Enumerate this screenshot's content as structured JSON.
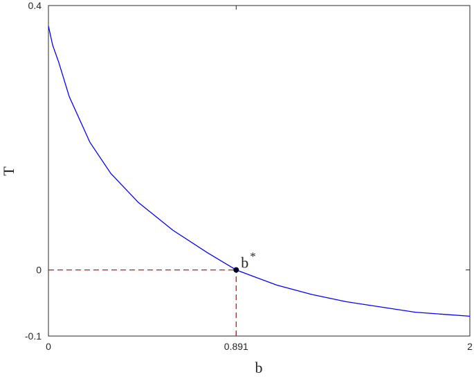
{
  "chart_data": {
    "type": "line",
    "xlabel": "b",
    "ylabel": "T",
    "x": [
      0,
      0.02,
      0.049,
      0.099,
      0.197,
      0.296,
      0.427,
      0.591,
      0.755,
      0.891,
      1.084,
      1.248,
      1.412,
      1.576,
      1.741,
      2
    ],
    "series": [
      {
        "color": "#0000ff",
        "values": [
          0.369,
          0.34,
          0.314,
          0.262,
          0.193,
          0.146,
          0.102,
          0.06,
          0.026,
          0,
          -0.023,
          -0.037,
          -0.048,
          -0.056,
          -0.064,
          -0.07
        ]
      }
    ],
    "xlim": [
      0,
      2
    ],
    "ylim": [
      -0.1,
      0.4
    ],
    "xticks": [
      0,
      0.891,
      2
    ],
    "yticks": [
      -0.1,
      0,
      0.4
    ],
    "highlight": {
      "x": 0.891,
      "y": 0,
      "label": "b",
      "label_sup": "*",
      "line_color": "#ff0000",
      "point_color": "#000033"
    }
  }
}
